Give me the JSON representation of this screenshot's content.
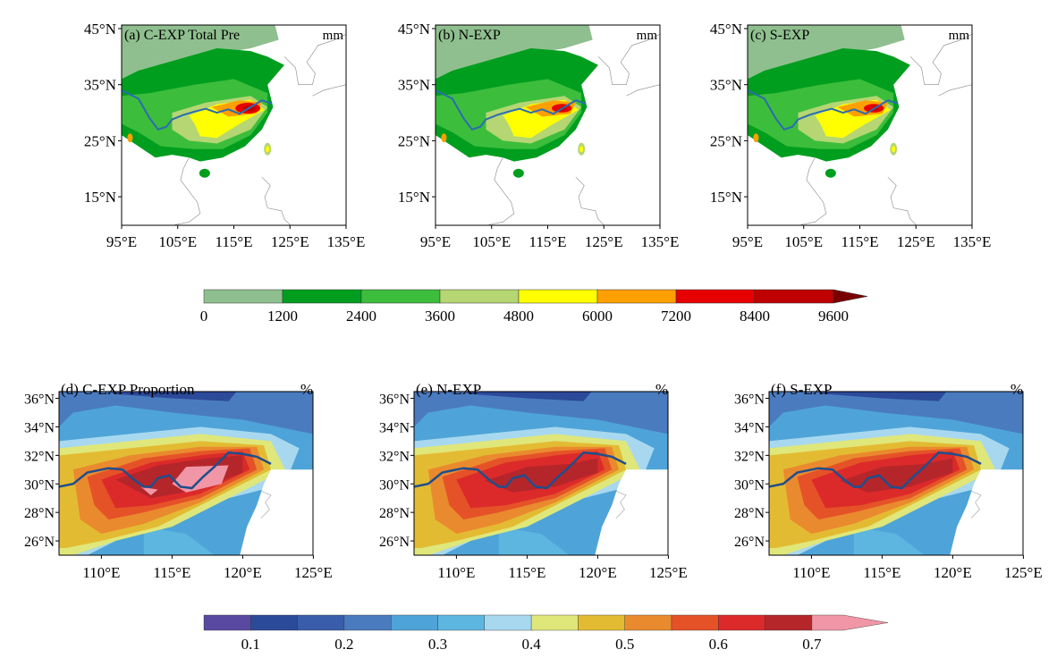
{
  "top_panels": [
    {
      "title": "(a) C-EXP Total Pre",
      "unit": "mm",
      "variant": "c"
    },
    {
      "title": "(b) N-EXP",
      "unit": "mm",
      "variant": "n"
    },
    {
      "title": "(c) S-EXP",
      "unit": "mm",
      "variant": "s"
    }
  ],
  "bottom_panels": [
    {
      "title": "(d) C-EXP Proportion",
      "unit": "%",
      "variant": "c"
    },
    {
      "title": "(e) N-EXP",
      "unit": "%",
      "variant": "n"
    },
    {
      "title": "(f) S-EXP",
      "unit": "%",
      "variant": "s"
    }
  ],
  "top_axes": {
    "lat_ticks": [
      "45°N",
      "35°N",
      "25°N",
      "15°N"
    ],
    "lat_values": [
      45,
      35,
      25,
      15
    ],
    "lon_ticks": [
      "95°E",
      "105°E",
      "115°E",
      "125°E",
      "135°E"
    ],
    "lon_values": [
      95,
      105,
      115,
      125,
      135
    ]
  },
  "bottom_axes": {
    "lat_ticks": [
      "36°N",
      "34°N",
      "32°N",
      "30°N",
      "28°N",
      "26°N"
    ],
    "lat_values": [
      36,
      34,
      32,
      30,
      28,
      26
    ],
    "lon_ticks": [
      "110°E",
      "115°E",
      "120°E",
      "125°E"
    ],
    "lon_values": [
      110,
      115,
      120,
      125
    ]
  },
  "colorbar_precip": {
    "labels": [
      "0",
      "1200",
      "2400",
      "3600",
      "4800",
      "6000",
      "7200",
      "8400",
      "9600"
    ],
    "colors": [
      "#8fbf8f",
      "#009e1e",
      "#3cbd3c",
      "#b5d672",
      "#ffff00",
      "#ffa000",
      "#e60000",
      "#c00000",
      "#780000"
    ]
  },
  "colorbar_prop": {
    "labels": [
      "0.1",
      "0.2",
      "0.3",
      "0.4",
      "0.5",
      "0.6",
      "0.7"
    ],
    "colors": [
      "#5a49a0",
      "#2c4a9a",
      "#3a5dab",
      "#4a7bbf",
      "#4ea4d8",
      "#5cb6e0",
      "#a8d8ef",
      "#dfe77a",
      "#e3bb33",
      "#ea8a2e",
      "#e55228",
      "#dc2a2a",
      "#b5262b",
      "#f096a6"
    ]
  },
  "river_color": "#1f4e8c"
}
